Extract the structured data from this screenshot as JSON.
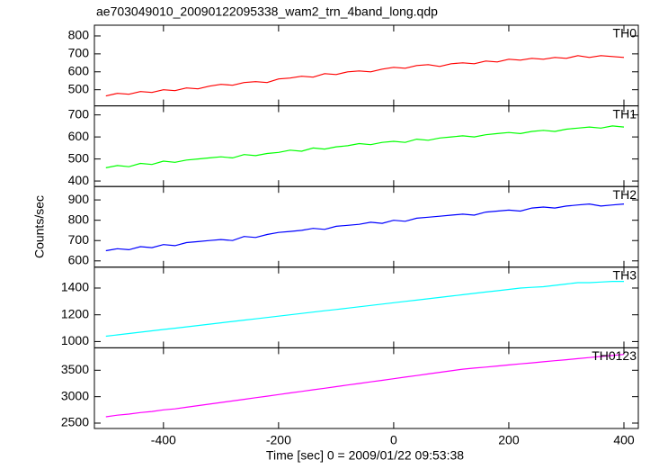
{
  "chart_data": {
    "type": "line",
    "title": "ae703049010_20090122095338_wam2_trn_4band_long.qdp",
    "x_label": "Time [sec] 0 = 2009/01/22 09:53:38",
    "y_label": "Counts/sec",
    "x": [
      -500,
      -480,
      -460,
      -440,
      -420,
      -400,
      -380,
      -360,
      -340,
      -320,
      -300,
      -280,
      -260,
      -240,
      -220,
      -200,
      -180,
      -160,
      -140,
      -120,
      -100,
      -80,
      -60,
      -40,
      -20,
      0,
      20,
      40,
      60,
      80,
      100,
      120,
      140,
      160,
      180,
      200,
      220,
      240,
      260,
      280,
      300,
      320,
      340,
      360,
      380,
      400
    ],
    "xlim": [
      -520,
      425
    ],
    "xticks": [
      -400,
      -200,
      0,
      200,
      400
    ],
    "panels": [
      {
        "name": "TH0",
        "color": "#ff0000",
        "ylim": [
          410,
          860
        ],
        "yticks": [
          500,
          600,
          700,
          800
        ],
        "values": [
          465,
          480,
          475,
          490,
          485,
          500,
          495,
          510,
          505,
          520,
          530,
          525,
          540,
          545,
          540,
          560,
          565,
          575,
          570,
          590,
          585,
          600,
          605,
          600,
          615,
          625,
          620,
          635,
          640,
          630,
          645,
          650,
          645,
          660,
          655,
          670,
          665,
          675,
          670,
          680,
          675,
          690,
          680,
          690,
          685,
          680
        ]
      },
      {
        "name": "TH1",
        "color": "#00ff00",
        "ylim": [
          375,
          741
        ],
        "yticks": [
          400,
          500,
          600,
          700
        ],
        "values": [
          460,
          470,
          465,
          480,
          475,
          490,
          485,
          495,
          500,
          505,
          510,
          505,
          520,
          515,
          525,
          530,
          540,
          535,
          550,
          545,
          555,
          560,
          570,
          565,
          575,
          580,
          575,
          590,
          585,
          595,
          600,
          605,
          600,
          610,
          615,
          620,
          615,
          625,
          630,
          625,
          635,
          640,
          645,
          640,
          650,
          645
        ]
      },
      {
        "name": "TH2",
        "color": "#0000ff",
        "ylim": [
          569,
          966
        ],
        "yticks": [
          600,
          700,
          800,
          900
        ],
        "values": [
          650,
          660,
          655,
          670,
          665,
          680,
          675,
          690,
          695,
          700,
          705,
          700,
          720,
          715,
          730,
          740,
          745,
          750,
          760,
          755,
          770,
          775,
          780,
          790,
          785,
          800,
          795,
          810,
          815,
          820,
          825,
          830,
          825,
          840,
          845,
          850,
          845,
          860,
          865,
          860,
          870,
          875,
          880,
          870,
          875,
          880
        ]
      },
      {
        "name": "TH3",
        "color": "#00ffff",
        "ylim": [
          953,
          1556
        ],
        "yticks": [
          1000,
          1200,
          1400
        ],
        "values": [
          1040,
          1050,
          1060,
          1070,
          1080,
          1090,
          1100,
          1110,
          1120,
          1130,
          1140,
          1150,
          1160,
          1170,
          1180,
          1190,
          1200,
          1210,
          1220,
          1230,
          1240,
          1250,
          1260,
          1270,
          1280,
          1290,
          1300,
          1310,
          1320,
          1330,
          1340,
          1350,
          1360,
          1370,
          1380,
          1390,
          1400,
          1405,
          1410,
          1420,
          1430,
          1440,
          1440,
          1445,
          1450,
          1450
        ]
      },
      {
        "name": "TH0123",
        "color": "#ff00ff",
        "ylim": [
          2398,
          3924
        ],
        "yticks": [
          2500,
          3000,
          3500
        ],
        "values": [
          2620,
          2650,
          2670,
          2700,
          2720,
          2750,
          2770,
          2800,
          2830,
          2860,
          2890,
          2920,
          2950,
          2980,
          3010,
          3040,
          3070,
          3100,
          3130,
          3160,
          3190,
          3220,
          3250,
          3280,
          3310,
          3340,
          3370,
          3400,
          3430,
          3460,
          3490,
          3520,
          3540,
          3560,
          3580,
          3600,
          3620,
          3640,
          3660,
          3680,
          3700,
          3720,
          3740,
          3760,
          3780,
          3800
        ]
      }
    ]
  }
}
